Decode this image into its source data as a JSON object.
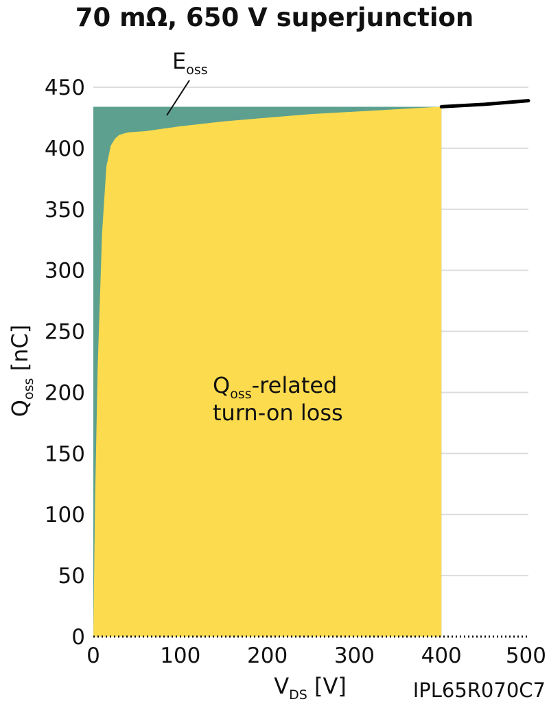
{
  "chart_data": {
    "type": "area",
    "title": "70 mΩ, 650 V superjunction",
    "part_number": "IPL65R070C7",
    "xlabel": {
      "main": "V",
      "sub": "DS",
      "unit": " [V]"
    },
    "ylabel": {
      "main": "Q",
      "sub": "oss",
      "unit": " [nC]"
    },
    "xlim": [
      0,
      500
    ],
    "ylim": [
      0,
      450
    ],
    "x_ticks": [
      "0",
      "100",
      "200",
      "300",
      "400",
      "500"
    ],
    "y_ticks": [
      "0",
      "50",
      "100",
      "150",
      "200",
      "250",
      "300",
      "350",
      "400",
      "450"
    ],
    "grid": "horizontal",
    "operating_voltage": 400,
    "qoss_at_operating_voltage": 434,
    "series": [
      {
        "x": [
          0,
          2,
          5,
          10,
          15,
          20,
          25,
          30,
          40,
          60,
          80,
          100,
          150,
          200,
          250,
          300,
          350,
          400,
          450,
          500
        ],
        "y": [
          0,
          110,
          220,
          330,
          385,
          402,
          408,
          411,
          413,
          414,
          416,
          418,
          422,
          425,
          428,
          430,
          432,
          434,
          436,
          439
        ],
        "color": "#000000"
      }
    ],
    "regions": [
      {
        "label_main": "E",
        "label_sub": "oss",
        "color": "#5da08f"
      },
      {
        "label_main": "Q",
        "label_sub": "oss",
        "label_rest": "-related",
        "label_line2": "turn-on loss",
        "color": "#fcdb4f"
      }
    ]
  }
}
